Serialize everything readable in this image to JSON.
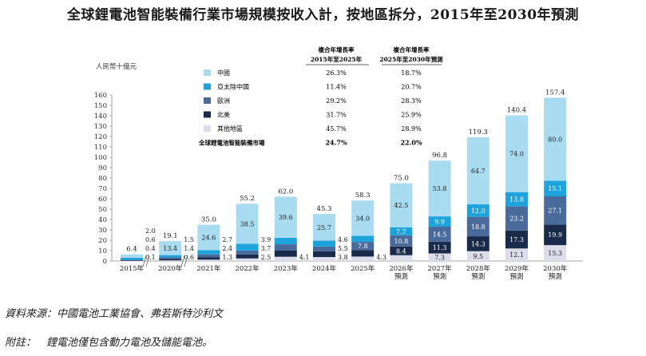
{
  "title": "全球鋰電池智能裝備行業市場規模按收入計，按地區拆分，2015年至2030年預測",
  "source": "資料來源：中國電池工業協會、弗若斯特沙利文",
  "footnote": {
    "label": "附註：",
    "text": "鋰電池僅包含動力電池及儲能電池。"
  },
  "colors": {
    "china": "#a9dcf0",
    "apac": "#1ea3dd",
    "europe": "#4a6a9c",
    "na": "#1a2a4a",
    "other": "#dcdcea"
  },
  "chart_data": {
    "type": "bar",
    "stacked": true,
    "ylabel": "人民幣十億元",
    "ylim": [
      0,
      160
    ],
    "yticks": [
      0,
      10,
      20,
      30,
      40,
      50,
      60,
      70,
      80,
      90,
      100,
      110,
      120,
      130,
      140,
      150,
      160
    ],
    "categories": [
      [
        "2015年"
      ],
      [
        "2020年"
      ],
      [
        "2021年"
      ],
      [
        "2022年"
      ],
      [
        "2023年"
      ],
      [
        "2024年"
      ],
      [
        "2025年"
      ],
      [
        "2026年",
        "預測"
      ],
      [
        "2027年",
        "預測"
      ],
      [
        "2028年",
        "預測"
      ],
      [
        "2029年",
        "預測"
      ],
      [
        "2030年",
        "預測"
      ]
    ],
    "totals": [
      6.4,
      19.1,
      35.0,
      55.2,
      62.0,
      45.3,
      58.3,
      75.0,
      96.8,
      119.3,
      140.4,
      157.4
    ],
    "series": [
      {
        "name": "其他地區",
        "color_key": "other",
        "values": [
          0.1,
          0.6,
          1.3,
          2.5,
          4.1,
          3.8,
          4.3,
          5.6,
          7.3,
          9.5,
          12.1,
          15.3
        ]
      },
      {
        "name": "北美",
        "color_key": "na",
        "values": [
          0.4,
          1.4,
          2.4,
          3.7,
          5.9,
          5.5,
          6.3,
          8.4,
          11.3,
          14.3,
          17.3,
          19.9
        ]
      },
      {
        "name": "歐洲",
        "color_key": "europe",
        "values": [
          0.6,
          1.5,
          2.7,
          3.9,
          6.1,
          4.6,
          7.8,
          10.8,
          14.5,
          18.8,
          23.2,
          27.1
        ]
      },
      {
        "name": "亞太除中國",
        "color_key": "apac",
        "values": [
          2.0,
          2.2,
          4.0,
          6.6,
          6.3,
          5.7,
          5.9,
          7.7,
          9.9,
          12.0,
          13.8,
          15.1
        ]
      },
      {
        "name": "中國",
        "color_key": "china",
        "values": [
          3.3,
          13.4,
          24.6,
          38.5,
          39.6,
          25.7,
          34.0,
          42.5,
          53.8,
          64.7,
          74.0,
          80.0
        ]
      }
    ],
    "legend": {
      "header_cagr_a": [
        "複合年增長率",
        "2015年至2025年"
      ],
      "header_cagr_b": [
        "複合年增長率",
        "2025年至2030年預測"
      ],
      "rows": [
        {
          "name": "中國",
          "color_key": "china",
          "cagr_a": "26.3%",
          "cagr_b": "18.7%"
        },
        {
          "name": "亞太除中國",
          "color_key": "apac",
          "cagr_a": "11.4%",
          "cagr_b": "20.7%"
        },
        {
          "name": "歐洲",
          "color_key": "europe",
          "cagr_a": "29.2%",
          "cagr_b": "28.3%"
        },
        {
          "name": "北美",
          "color_key": "na",
          "cagr_a": "31.7%",
          "cagr_b": "25.9%"
        },
        {
          "name": "其他地區",
          "color_key": "other",
          "cagr_a": "45.7%",
          "cagr_b": "28.9%"
        }
      ],
      "total_row": {
        "name": "全球鋰電池智能裝備市場",
        "cagr_a": "24.7%",
        "cagr_b": "22.0%"
      }
    },
    "label_overrides": {
      "0": {
        "side": [
          "2.0",
          "0.6",
          "0.4",
          "0.1"
        ]
      },
      "1": {
        "side": [
          "1.5",
          "1.4",
          "0.6"
        ]
      },
      "2": {
        "side": [
          "2.7",
          "2.4",
          "1.3"
        ]
      },
      "3": {
        "side": [
          "3.9",
          "3.7",
          "2.5"
        ]
      },
      "4": {
        "side": [
          "4.1"
        ]
      },
      "5": {
        "side": [
          "4.6",
          "5.5",
          "3.8"
        ]
      },
      "6": {
        "side": [
          "4.3"
        ]
      }
    }
  }
}
